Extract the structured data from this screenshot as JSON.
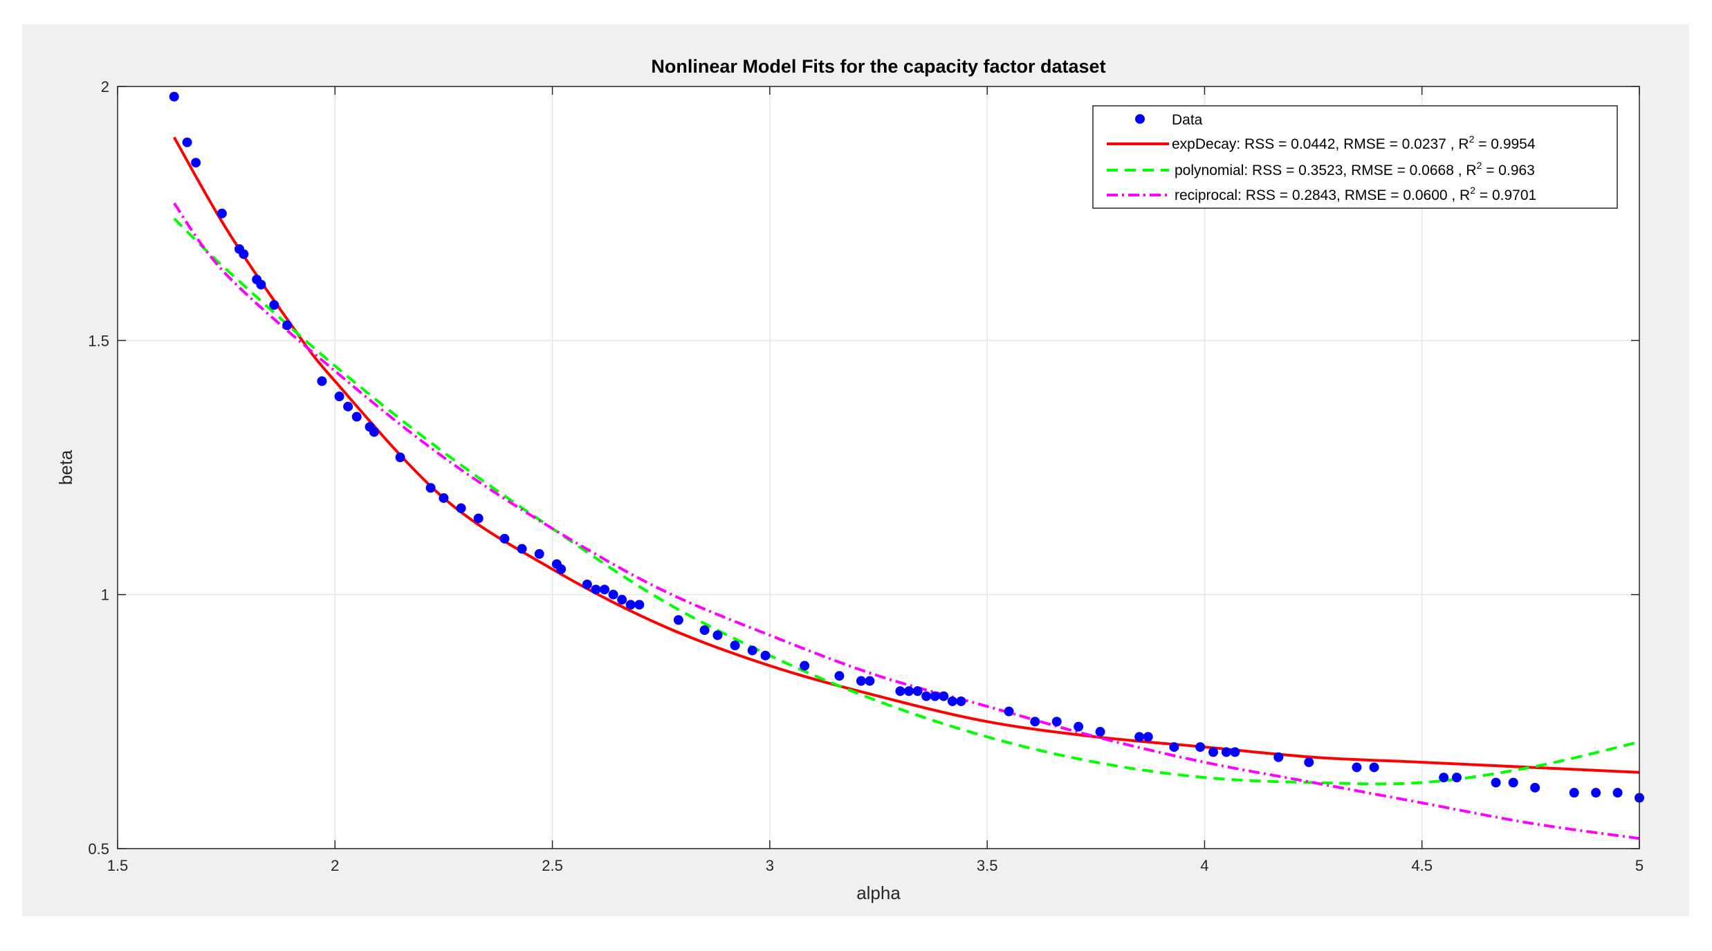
{
  "chart_data": {
    "type": "scatter",
    "title": "Nonlinear Model Fits for the capacity factor dataset",
    "xlabel": "alpha",
    "ylabel": "beta",
    "xlim": [
      1.5,
      5
    ],
    "ylim": [
      0.5,
      2
    ],
    "xticks": [
      "1.5",
      "2",
      "2.5",
      "3",
      "3.5",
      "4",
      "4.5",
      "5"
    ],
    "yticks": [
      "0.5",
      "1",
      "1.5",
      "2"
    ],
    "grid": true,
    "legend_position": "top-right",
    "data": {
      "name": "Data",
      "color": "#0000ff",
      "points": [
        [
          1.63,
          1.98
        ],
        [
          1.66,
          1.89
        ],
        [
          1.68,
          1.85
        ],
        [
          1.74,
          1.75
        ],
        [
          1.78,
          1.68
        ],
        [
          1.79,
          1.67
        ],
        [
          1.82,
          1.62
        ],
        [
          1.83,
          1.61
        ],
        [
          1.86,
          1.57
        ],
        [
          1.89,
          1.53
        ],
        [
          1.97,
          1.42
        ],
        [
          2.01,
          1.39
        ],
        [
          2.03,
          1.37
        ],
        [
          2.05,
          1.35
        ],
        [
          2.08,
          1.33
        ],
        [
          2.09,
          1.32
        ],
        [
          2.15,
          1.27
        ],
        [
          2.22,
          1.21
        ],
        [
          2.25,
          1.19
        ],
        [
          2.29,
          1.17
        ],
        [
          2.33,
          1.15
        ],
        [
          2.39,
          1.11
        ],
        [
          2.43,
          1.09
        ],
        [
          2.47,
          1.08
        ],
        [
          2.51,
          1.06
        ],
        [
          2.52,
          1.05
        ],
        [
          2.58,
          1.02
        ],
        [
          2.6,
          1.01
        ],
        [
          2.62,
          1.01
        ],
        [
          2.64,
          1.0
        ],
        [
          2.66,
          0.99
        ],
        [
          2.68,
          0.98
        ],
        [
          2.7,
          0.98
        ],
        [
          2.79,
          0.95
        ],
        [
          2.85,
          0.93
        ],
        [
          2.88,
          0.92
        ],
        [
          2.92,
          0.9
        ],
        [
          2.96,
          0.89
        ],
        [
          2.99,
          0.88
        ],
        [
          3.08,
          0.86
        ],
        [
          3.16,
          0.84
        ],
        [
          3.21,
          0.83
        ],
        [
          3.23,
          0.83
        ],
        [
          3.3,
          0.81
        ],
        [
          3.32,
          0.81
        ],
        [
          3.34,
          0.81
        ],
        [
          3.36,
          0.8
        ],
        [
          3.38,
          0.8
        ],
        [
          3.4,
          0.8
        ],
        [
          3.42,
          0.79
        ],
        [
          3.44,
          0.79
        ],
        [
          3.55,
          0.77
        ],
        [
          3.61,
          0.75
        ],
        [
          3.66,
          0.75
        ],
        [
          3.71,
          0.74
        ],
        [
          3.76,
          0.73
        ],
        [
          3.85,
          0.72
        ],
        [
          3.87,
          0.72
        ],
        [
          3.93,
          0.7
        ],
        [
          3.99,
          0.7
        ],
        [
          4.02,
          0.69
        ],
        [
          4.05,
          0.69
        ],
        [
          4.07,
          0.69
        ],
        [
          4.17,
          0.68
        ],
        [
          4.24,
          0.67
        ],
        [
          4.35,
          0.66
        ],
        [
          4.39,
          0.66
        ],
        [
          4.55,
          0.64
        ],
        [
          4.58,
          0.64
        ],
        [
          4.67,
          0.63
        ],
        [
          4.71,
          0.63
        ],
        [
          4.76,
          0.62
        ],
        [
          4.85,
          0.61
        ],
        [
          4.9,
          0.61
        ],
        [
          4.95,
          0.61
        ],
        [
          5.0,
          0.6
        ]
      ]
    },
    "series": [
      {
        "name": "expDecay: RSS = 0.0442,  RMSE = 0.0237 , R",
        "sup": "2",
        "name_end": " = 0.9954",
        "color": "#ff0000",
        "style": "solid",
        "x": [
          1.63,
          1.75,
          1.9,
          2.0,
          2.25,
          2.5,
          2.75,
          3.0,
          3.25,
          3.5,
          3.75,
          4.0,
          4.25,
          4.5,
          4.75,
          5.0
        ],
        "y": [
          1.9,
          1.72,
          1.53,
          1.42,
          1.19,
          1.05,
          0.94,
          0.86,
          0.8,
          0.75,
          0.72,
          0.7,
          0.68,
          0.67,
          0.66,
          0.65
        ]
      },
      {
        "name": "polynomial: RSS = 0.3523,  RMSE = 0.0668 , R",
        "sup": "2",
        "name_end": " = 0.963",
        "color": "#00ff00",
        "style": "dashed",
        "x": [
          1.63,
          1.75,
          2.0,
          2.25,
          2.5,
          2.75,
          3.0,
          3.25,
          3.5,
          3.75,
          4.0,
          4.25,
          4.5,
          4.75,
          5.0
        ],
        "y": [
          1.74,
          1.64,
          1.45,
          1.28,
          1.13,
          0.99,
          0.88,
          0.79,
          0.72,
          0.67,
          0.64,
          0.63,
          0.63,
          0.66,
          0.71
        ]
      },
      {
        "name": "reciprocal: RSS = 0.2843,  RMSE = 0.0600 , R",
        "sup": "2",
        "name_end": " = 0.9701",
        "color": "#ff00ff",
        "style": "dashdot",
        "x": [
          1.63,
          1.75,
          2.0,
          2.25,
          2.5,
          2.75,
          3.0,
          3.25,
          3.5,
          3.75,
          4.0,
          4.25,
          4.5,
          4.75,
          5.0
        ],
        "y": [
          1.77,
          1.63,
          1.44,
          1.27,
          1.13,
          1.01,
          0.92,
          0.84,
          0.78,
          0.72,
          0.67,
          0.63,
          0.59,
          0.55,
          0.52
        ]
      }
    ]
  }
}
